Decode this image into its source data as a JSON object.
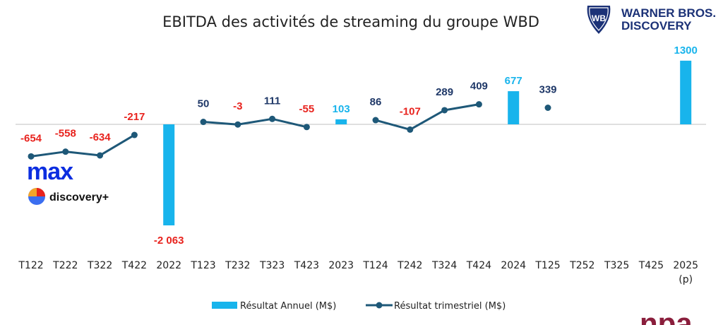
{
  "chart_data": {
    "type": "bar+line",
    "title": "EBITDA des activités de streaming du groupe WBD",
    "categories": [
      "T122",
      "T222",
      "T322",
      "T422",
      "2022",
      "T123",
      "T232",
      "T323",
      "T423",
      "2023",
      "T124",
      "T242",
      "T324",
      "T424",
      "2024",
      "T125",
      "T252",
      "T325",
      "T425",
      "2025"
    ],
    "category_sublabels": {
      "2025": "(p)"
    },
    "series": [
      {
        "name": "Résultat Annuel (M$)",
        "type": "bar",
        "color": "#18b4ec",
        "values": [
          null,
          null,
          null,
          null,
          -2063,
          null,
          null,
          null,
          null,
          103,
          null,
          null,
          null,
          null,
          677,
          null,
          null,
          null,
          null,
          1300
        ]
      },
      {
        "name": "Résultat trimestriel (M$)",
        "type": "line",
        "color": "#1e5878",
        "values": [
          -654,
          -558,
          -634,
          -217,
          null,
          50,
          -3,
          111,
          -55,
          null,
          86,
          -107,
          289,
          409,
          null,
          339,
          null,
          null,
          null,
          null
        ]
      }
    ],
    "data_labels": [
      "-654",
      "-558",
      "-634",
      "-217",
      "-2 063",
      "50",
      "-3",
      "111",
      "-55",
      "103",
      "86",
      "-107",
      "289",
      "409",
      "677",
      "339",
      "",
      "",
      "",
      "1300"
    ],
    "label_colors": {
      "negative": "#e8231e",
      "positive_line": "#1f3868",
      "annual_positive": "#18b4ec"
    },
    "ylim": [
      -2063,
      1300
    ],
    "xlabel": "",
    "ylabel": "",
    "legend_position": "bottom"
  },
  "logos": {
    "wbd_line1": "WARNER BROS.",
    "wbd_line2": "DISCOVERY",
    "wbd_shield": "WB",
    "max": "max",
    "discovery_plus": "discovery+",
    "npa": "npa"
  },
  "colors": {
    "max_blue": "#0c2ee0",
    "wbd_navy": "#1c3277",
    "npa_maroon": "#8a1e3c"
  }
}
